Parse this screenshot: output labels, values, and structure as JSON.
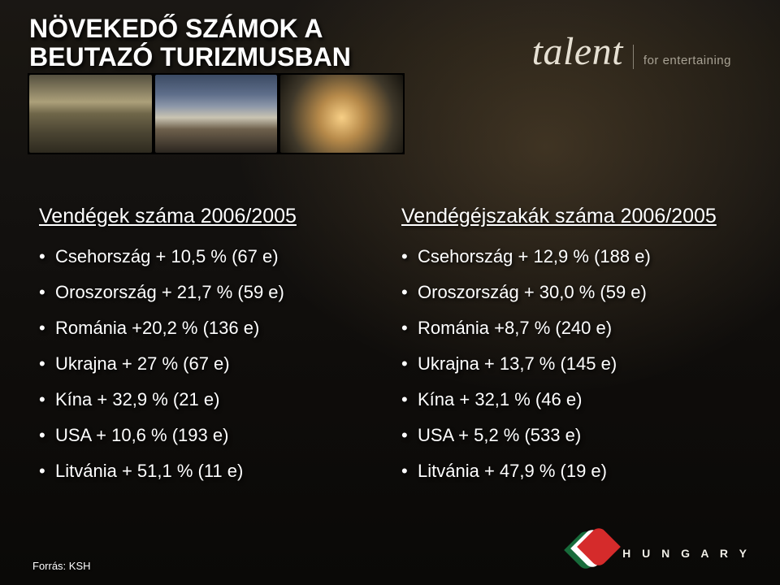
{
  "title": {
    "line1": "NÖVEKEDŐ SZÁMOK A",
    "line2": "BEUTAZÓ TURIZMUSBAN"
  },
  "brand": {
    "word": "talent",
    "tagline": "for entertaining"
  },
  "left": {
    "heading": "Vendégek száma 2006/2005",
    "items": [
      "Csehország + 10,5 % (67 e)",
      "Oroszország + 21,7 % (59 e)",
      "Románia +20,2 % (136 e)",
      "Ukrajna + 27 % (67 e)",
      "Kína + 32,9 % (21 e)",
      "USA + 10,6 % (193 e)",
      "Litvánia + 51,1 % (11 e)"
    ]
  },
  "right": {
    "heading": "Vendégéjszakák száma 2006/2005",
    "items": [
      "Csehország + 12,9 % (188 e)",
      "Oroszország + 30,0 % (59 e)",
      "Románia +8,7 % (240 e)",
      "Ukrajna + 13,7 % (145 e)",
      "Kína + 32,1 % (46 e)",
      "USA + 5,2 % (533 e)",
      "Litvánia + 47,9 % (19 e)"
    ]
  },
  "source": "Forrás: KSH",
  "logo_text": "H U N G A R Y",
  "colors": {
    "text": "#ffffff",
    "brand_text": "#e6e0d3",
    "brand_tag": "#a8a294",
    "flag_green": "#176b3a",
    "flag_white": "#ffffff",
    "flag_red": "#d52b2b",
    "background_top": "#1a1714",
    "background_bottom": "#0a0907"
  },
  "typography": {
    "title_fontsize": 32,
    "title_weight": 900,
    "heading_fontsize": 25,
    "item_fontsize": 22,
    "source_fontsize": 13,
    "brand_word_fontsize": 48,
    "logo_text_fontsize": 14
  }
}
